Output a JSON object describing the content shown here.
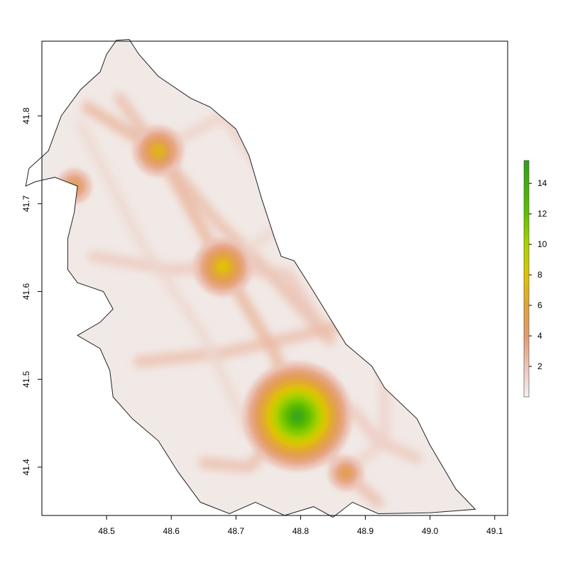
{
  "chart_data": {
    "type": "heatmap",
    "title": "",
    "xlabel": "",
    "ylabel": "",
    "xlim": [
      48.4,
      49.12
    ],
    "ylim": [
      41.345,
      41.885
    ],
    "x_ticks": [
      {
        "value": 48.5,
        "label": "48.5"
      },
      {
        "value": 48.6,
        "label": "48.6"
      },
      {
        "value": 48.7,
        "label": "48.7"
      },
      {
        "value": 48.8,
        "label": "48.8"
      },
      {
        "value": 48.9,
        "label": "48.9"
      },
      {
        "value": 49.0,
        "label": "49.0"
      },
      {
        "value": 49.1,
        "label": "49.1"
      }
    ],
    "y_ticks": [
      {
        "value": 41.4,
        "label": "41.4"
      },
      {
        "value": 41.5,
        "label": "41.5"
      },
      {
        "value": 41.6,
        "label": "41.6"
      },
      {
        "value": 41.7,
        "label": "41.7"
      },
      {
        "value": 41.8,
        "label": "41.8"
      }
    ],
    "colorbar": {
      "range": [
        0,
        15.5
      ],
      "ticks": [
        {
          "value": 2,
          "label": "2"
        },
        {
          "value": 4,
          "label": "4"
        },
        {
          "value": 6,
          "label": "6"
        },
        {
          "value": 8,
          "label": "8"
        },
        {
          "value": 10,
          "label": "10"
        },
        {
          "value": 12,
          "label": "12"
        },
        {
          "value": 14,
          "label": "14"
        }
      ],
      "color_stops": [
        {
          "value": 0,
          "color": "#f2f2f2"
        },
        {
          "value": 2,
          "color": "#ecc5b8"
        },
        {
          "value": 4,
          "color": "#e49a6e"
        },
        {
          "value": 6,
          "color": "#e2a23a"
        },
        {
          "value": 8,
          "color": "#dfc200"
        },
        {
          "value": 10,
          "color": "#a8d400"
        },
        {
          "value": 12,
          "color": "#5fc000"
        },
        {
          "value": 15.5,
          "color": "#2e9e1b"
        }
      ]
    },
    "hotspots": [
      {
        "x": 48.795,
        "y": 41.458,
        "value": 14.5
      },
      {
        "x": 48.68,
        "y": 41.628,
        "value": 8
      },
      {
        "x": 48.58,
        "y": 41.76,
        "value": 7
      },
      {
        "x": 48.87,
        "y": 41.393,
        "value": 5
      },
      {
        "x": 48.45,
        "y": 41.72,
        "value": 5
      }
    ],
    "corridors": [
      {
        "points": [
          [
            48.47,
            41.81
          ],
          [
            48.58,
            41.76
          ],
          [
            48.68,
            41.628
          ],
          [
            48.76,
            41.53
          ],
          [
            48.795,
            41.458
          ]
        ],
        "value": 3
      },
      {
        "points": [
          [
            48.52,
            41.82
          ],
          [
            48.58,
            41.76
          ],
          [
            48.67,
            41.68
          ],
          [
            48.74,
            41.63
          ],
          [
            48.845,
            41.545
          ]
        ],
        "value": 2.5
      },
      {
        "points": [
          [
            48.48,
            41.64
          ],
          [
            48.6,
            41.625
          ],
          [
            48.68,
            41.628
          ],
          [
            48.78,
            41.62
          ],
          [
            48.845,
            41.545
          ]
        ],
        "value": 2
      },
      {
        "points": [
          [
            48.55,
            41.52
          ],
          [
            48.68,
            41.53
          ],
          [
            48.74,
            41.54
          ],
          [
            48.83,
            41.555
          ],
          [
            48.92,
            41.575
          ]
        ],
        "value": 2.5
      },
      {
        "points": [
          [
            48.65,
            41.405
          ],
          [
            48.72,
            41.4
          ],
          [
            48.795,
            41.458
          ],
          [
            48.87,
            41.393
          ],
          [
            48.92,
            41.36
          ]
        ],
        "value": 2.5
      },
      {
        "points": [
          [
            48.795,
            41.458
          ],
          [
            48.88,
            41.465
          ],
          [
            48.92,
            41.43
          ],
          [
            48.98,
            41.41
          ]
        ],
        "value": 2
      },
      {
        "points": [
          [
            48.58,
            41.76
          ],
          [
            48.68,
            41.8
          ],
          [
            48.78,
            41.7
          ]
        ],
        "value": 1.5
      },
      {
        "points": [
          [
            48.68,
            41.628
          ],
          [
            48.78,
            41.68
          ],
          [
            48.87,
            41.63
          ]
        ],
        "value": 1.2
      },
      {
        "points": [
          [
            48.92,
            41.575
          ],
          [
            48.93,
            41.49
          ],
          [
            48.93,
            41.43
          ],
          [
            48.87,
            41.393
          ]
        ],
        "value": 1.5
      },
      {
        "points": [
          [
            48.46,
            41.79
          ],
          [
            48.55,
            41.66
          ],
          [
            48.65,
            41.55
          ],
          [
            48.72,
            41.44
          ]
        ],
        "value": 1.2
      }
    ],
    "region_outline": [
      [
        48.515,
        41.886
      ],
      [
        48.535,
        41.887
      ],
      [
        48.55,
        41.87
      ],
      [
        48.58,
        41.845
      ],
      [
        48.63,
        41.82
      ],
      [
        48.66,
        41.81
      ],
      [
        48.7,
        41.785
      ],
      [
        48.72,
        41.755
      ],
      [
        48.74,
        41.705
      ],
      [
        48.76,
        41.66
      ],
      [
        48.77,
        41.64
      ],
      [
        48.79,
        41.635
      ],
      [
        48.82,
        41.6
      ],
      [
        48.87,
        41.54
      ],
      [
        48.91,
        41.515
      ],
      [
        48.93,
        41.49
      ],
      [
        48.98,
        41.455
      ],
      [
        49.0,
        41.425
      ],
      [
        49.04,
        41.375
      ],
      [
        49.07,
        41.352
      ],
      [
        49.0,
        41.348
      ],
      [
        48.92,
        41.347
      ],
      [
        48.88,
        41.36
      ],
      [
        48.85,
        41.343
      ],
      [
        48.82,
        41.355
      ],
      [
        48.775,
        41.345
      ],
      [
        48.73,
        41.36
      ],
      [
        48.69,
        41.347
      ],
      [
        48.645,
        41.36
      ],
      [
        48.61,
        41.395
      ],
      [
        48.58,
        41.43
      ],
      [
        48.54,
        41.455
      ],
      [
        48.51,
        41.48
      ],
      [
        48.505,
        41.51
      ],
      [
        48.49,
        41.535
      ],
      [
        48.455,
        41.55
      ],
      [
        48.49,
        41.565
      ],
      [
        48.51,
        41.58
      ],
      [
        48.495,
        41.6
      ],
      [
        48.455,
        41.61
      ],
      [
        48.44,
        41.625
      ],
      [
        48.44,
        41.66
      ],
      [
        48.45,
        41.69
      ],
      [
        48.455,
        41.72
      ],
      [
        48.42,
        41.73
      ],
      [
        48.39,
        41.725
      ],
      [
        48.375,
        41.72
      ],
      [
        48.38,
        41.74
      ],
      [
        48.41,
        41.76
      ],
      [
        48.43,
        41.8
      ],
      [
        48.46,
        41.83
      ],
      [
        48.49,
        41.85
      ],
      [
        48.5,
        41.87
      ]
    ]
  }
}
